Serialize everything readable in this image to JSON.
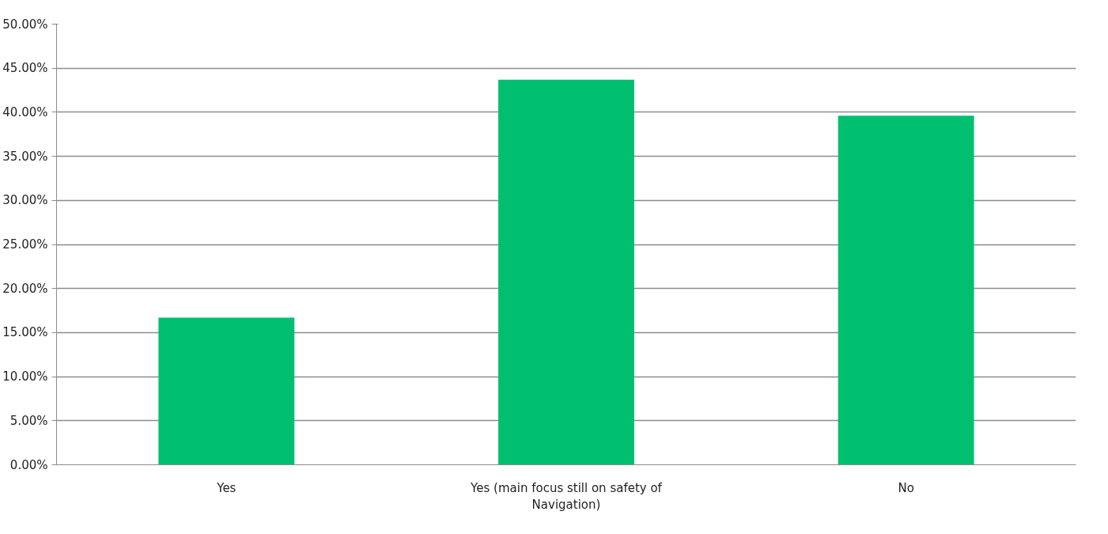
{
  "chart_data": {
    "type": "bar",
    "categories": [
      "Yes",
      "Yes (main focus still on safety of Navigation)",
      "No"
    ],
    "values": [
      16.7,
      43.7,
      39.6
    ],
    "color": "#00bf6f",
    "ylim": [
      0,
      50
    ],
    "yticks": [
      {
        "value": 0,
        "label": "0.00%"
      },
      {
        "value": 5,
        "label": "5.00%"
      },
      {
        "value": 10,
        "label": "10.00%"
      },
      {
        "value": 15,
        "label": "15.00%"
      },
      {
        "value": 20,
        "label": "20.00%"
      },
      {
        "value": 25,
        "label": "25.00%"
      },
      {
        "value": 30,
        "label": "30.00%"
      },
      {
        "value": 35,
        "label": "35.00%"
      },
      {
        "value": 40,
        "label": "40.00%"
      },
      {
        "value": 45,
        "label": "45.00%"
      },
      {
        "value": 50,
        "label": "50.00%"
      }
    ],
    "grid": "y"
  }
}
